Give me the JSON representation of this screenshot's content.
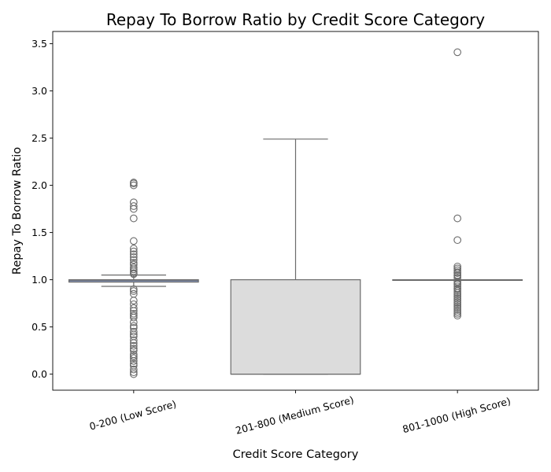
{
  "chart_data": {
    "type": "box",
    "title": "Repay To Borrow Ratio by Credit Score Category",
    "xlabel": "Credit Score Category",
    "ylabel": "Repay To Borrow Ratio",
    "ylim": [
      -0.17,
      3.63
    ],
    "yticks": [
      0.0,
      0.5,
      1.0,
      1.5,
      2.0,
      2.5,
      3.0,
      3.5
    ],
    "ytick_labels": [
      "0.0",
      "0.5",
      "1.0",
      "1.5",
      "2.0",
      "2.5",
      "3.0",
      "3.5"
    ],
    "grid": false,
    "categories": [
      "0-200 (Low Score)",
      "201-800 (Medium Score)",
      "801-1000 (High Score)"
    ],
    "boxes": [
      {
        "category": "0-200 (Low Score)",
        "color": "#8fa8e0",
        "whisker_low": 0.93,
        "q1": 0.975,
        "median": 0.99,
        "q3": 1.0,
        "whisker_high": 1.05,
        "outliers": [
          2.03,
          2.02,
          2.0,
          1.82,
          1.78,
          1.75,
          1.65,
          1.41,
          1.33,
          1.3,
          1.27,
          1.24,
          1.21,
          1.18,
          1.16,
          1.13,
          1.11,
          1.09,
          1.07,
          1.06,
          0.9,
          0.88,
          0.85,
          0.78,
          0.74,
          0.7,
          0.67,
          0.64,
          0.62,
          0.6,
          0.55,
          0.51,
          0.49,
          0.45,
          0.42,
          0.4,
          0.36,
          0.33,
          0.3,
          0.27,
          0.25,
          0.21,
          0.19,
          0.17,
          0.14,
          0.11,
          0.09,
          0.05,
          0.02,
          0.0
        ]
      },
      {
        "category": "201-800 (Medium Score)",
        "color": "#dcdcdc",
        "whisker_low": 0.0,
        "q1": 0.0,
        "median": 0.0,
        "q3": 1.0,
        "whisker_high": 2.49,
        "outliers": []
      },
      {
        "category": "801-1000 (High Score)",
        "color": "#f5b8a6",
        "whisker_low": 1.0,
        "q1": 1.0,
        "median": 1.0,
        "q3": 1.0,
        "whisker_high": 1.0,
        "outliers": [
          3.41,
          1.65,
          1.42,
          1.14,
          1.12,
          1.1,
          1.08,
          1.07,
          1.05,
          1.04,
          1.02,
          0.98,
          0.96,
          0.95,
          0.93,
          0.91,
          0.9,
          0.88,
          0.86,
          0.84,
          0.82,
          0.8,
          0.78,
          0.76,
          0.74,
          0.72,
          0.7,
          0.68,
          0.66,
          0.64,
          0.62
        ]
      }
    ]
  }
}
